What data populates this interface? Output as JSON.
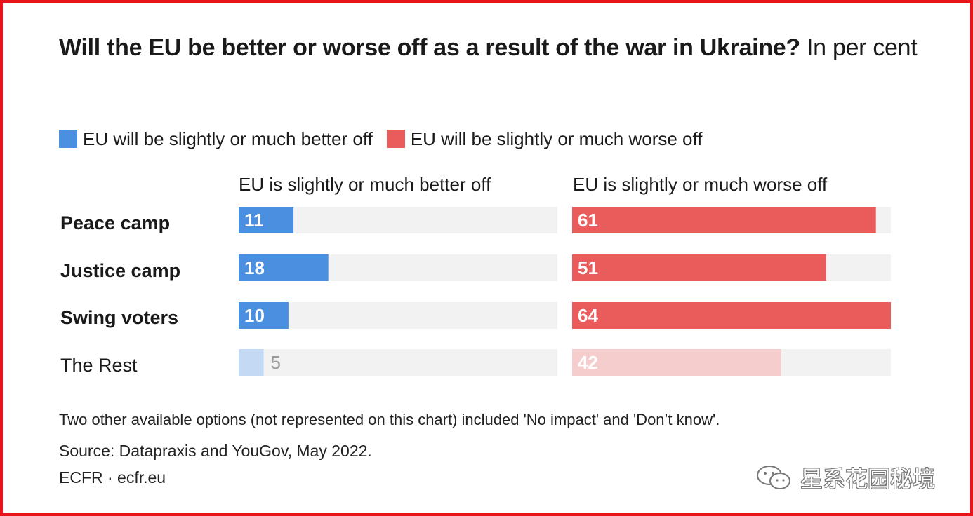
{
  "title": {
    "bold": "Will the EU be better or worse off as a result of the war in Ukraine?",
    "rest": " In per cent"
  },
  "legend": [
    {
      "label": "EU will be slightly or much better off",
      "color": "#4a8fe0"
    },
    {
      "label": "EU will be slightly or much worse off",
      "color": "#ea5b5b"
    }
  ],
  "chart_data": {
    "type": "bar",
    "title": "Will the EU be better or worse off as a result of the war in Ukraine? In per cent",
    "categories": [
      "Peace camp",
      "Justice camp",
      "Swing voters",
      "The Rest"
    ],
    "emphasis": [
      true,
      true,
      true,
      false
    ],
    "panels": [
      {
        "name": "EU is slightly or much better off",
        "values": [
          11,
          18,
          10,
          5
        ],
        "color": "#4a8fe0",
        "muted_color": "#c3d9f4"
      },
      {
        "name": "EU is slightly or much worse off",
        "values": [
          61,
          51,
          64,
          42
        ],
        "color": "#ea5b5b",
        "muted_color": "#f6cdcd"
      }
    ],
    "xlim": [
      0,
      64
    ],
    "track_color": "#f2f2f2"
  },
  "notes": {
    "options": "Two other available options (not represented on this chart) included 'No impact' and 'Don’t know'.",
    "source": "Source: Datapraxis and YouGov, May 2022.",
    "credit": "ECFR · ecfr.eu"
  },
  "watermark": {
    "icon": "wechat-icon",
    "text": "星系花园秘境"
  }
}
